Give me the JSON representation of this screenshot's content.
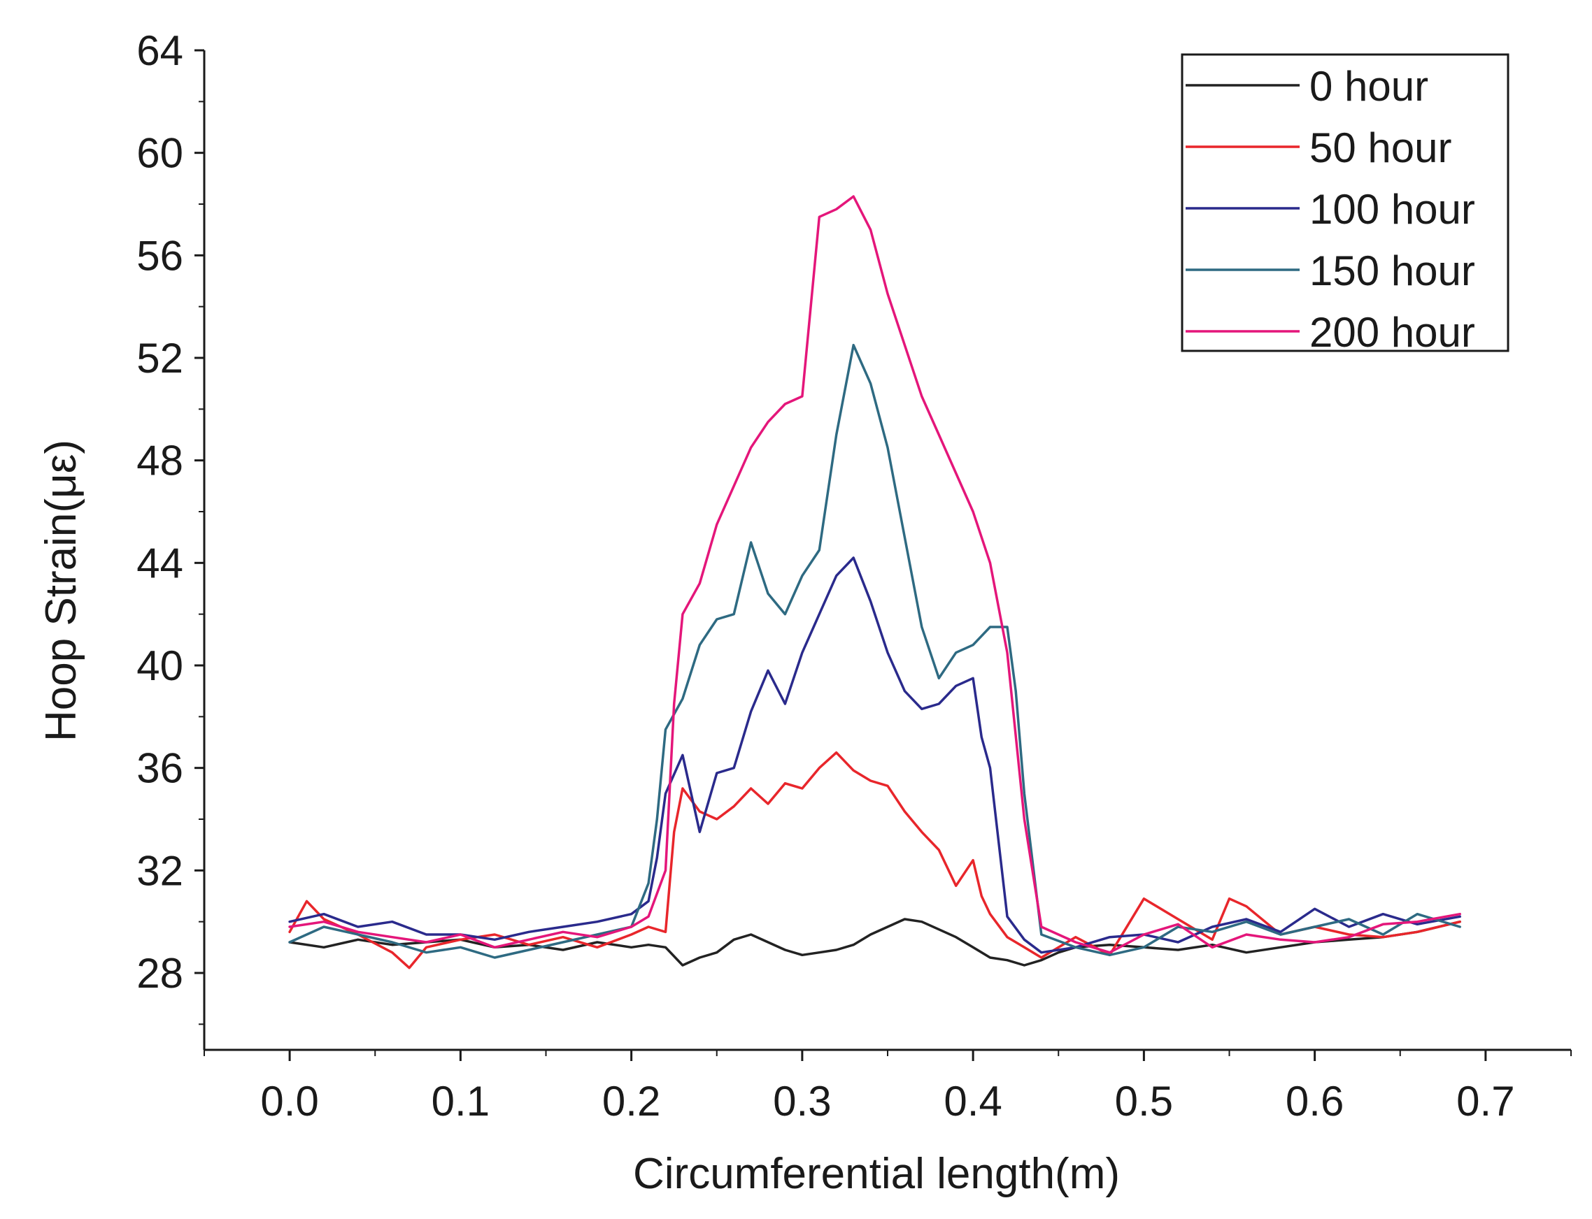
{
  "chart_data": {
    "type": "line",
    "title": "",
    "xlabel": "Circumferential length(m)",
    "ylabel": "Hoop Strain(με)",
    "xlim": [
      -0.05,
      0.75
    ],
    "ylim": [
      25,
      64
    ],
    "xticks": [
      "0.0",
      "0.1",
      "0.2",
      "0.3",
      "0.4",
      "0.5",
      "0.6",
      "0.7"
    ],
    "yticks": [
      "28",
      "32",
      "36",
      "40",
      "44",
      "48",
      "52",
      "56",
      "60",
      "64"
    ],
    "legend_position": "top-right",
    "series": [
      {
        "name": "0 hour",
        "color": "#222222",
        "x": [
          0,
          0.02,
          0.04,
          0.06,
          0.08,
          0.1,
          0.12,
          0.14,
          0.16,
          0.18,
          0.2,
          0.21,
          0.22,
          0.23,
          0.24,
          0.25,
          0.26,
          0.27,
          0.28,
          0.29,
          0.3,
          0.31,
          0.32,
          0.33,
          0.34,
          0.35,
          0.36,
          0.37,
          0.38,
          0.39,
          0.4,
          0.41,
          0.42,
          0.43,
          0.44,
          0.45,
          0.46,
          0.48,
          0.5,
          0.52,
          0.54,
          0.56,
          0.58,
          0.6,
          0.62,
          0.64,
          0.66,
          0.685
        ],
        "y": [
          29.2,
          29.0,
          29.3,
          29.1,
          29.2,
          29.3,
          29.0,
          29.1,
          28.9,
          29.2,
          29.0,
          29.1,
          29.0,
          28.3,
          28.6,
          28.8,
          29.3,
          29.5,
          29.2,
          28.9,
          28.7,
          28.8,
          28.9,
          29.1,
          29.5,
          29.8,
          30.1,
          30.0,
          29.7,
          29.4,
          29.0,
          28.6,
          28.5,
          28.3,
          28.5,
          28.8,
          29.0,
          29.1,
          29.0,
          28.9,
          29.1,
          28.8,
          29.0,
          29.2,
          29.3,
          29.4,
          29.6,
          30.0
        ]
      },
      {
        "name": "50 hour",
        "color": "#e8262b",
        "x": [
          0,
          0.01,
          0.02,
          0.04,
          0.06,
          0.07,
          0.08,
          0.1,
          0.12,
          0.14,
          0.16,
          0.18,
          0.2,
          0.21,
          0.22,
          0.225,
          0.23,
          0.24,
          0.25,
          0.26,
          0.27,
          0.28,
          0.29,
          0.3,
          0.31,
          0.32,
          0.33,
          0.34,
          0.35,
          0.36,
          0.37,
          0.38,
          0.39,
          0.4,
          0.405,
          0.41,
          0.42,
          0.43,
          0.44,
          0.46,
          0.48,
          0.5,
          0.52,
          0.54,
          0.55,
          0.56,
          0.58,
          0.6,
          0.62,
          0.64,
          0.66,
          0.685
        ],
        "y": [
          29.6,
          30.8,
          30.1,
          29.5,
          28.8,
          28.2,
          29.0,
          29.3,
          29.5,
          29.1,
          29.4,
          29.0,
          29.5,
          29.8,
          29.6,
          33.5,
          35.2,
          34.3,
          34.0,
          34.5,
          35.2,
          34.6,
          35.4,
          35.2,
          36.0,
          36.6,
          35.9,
          35.5,
          35.3,
          34.3,
          33.5,
          32.8,
          31.4,
          32.4,
          31.0,
          30.3,
          29.4,
          29.0,
          28.6,
          29.4,
          28.7,
          30.9,
          30.1,
          29.3,
          30.9,
          30.6,
          29.5,
          29.8,
          29.5,
          29.4,
          29.6,
          30.0
        ]
      },
      {
        "name": "100 hour",
        "color": "#2a2a8c",
        "x": [
          0,
          0.02,
          0.04,
          0.06,
          0.08,
          0.1,
          0.12,
          0.14,
          0.16,
          0.18,
          0.2,
          0.21,
          0.215,
          0.22,
          0.23,
          0.24,
          0.25,
          0.26,
          0.27,
          0.28,
          0.29,
          0.3,
          0.31,
          0.32,
          0.33,
          0.34,
          0.35,
          0.36,
          0.37,
          0.38,
          0.39,
          0.4,
          0.405,
          0.41,
          0.42,
          0.43,
          0.44,
          0.46,
          0.48,
          0.5,
          0.52,
          0.54,
          0.56,
          0.58,
          0.6,
          0.62,
          0.64,
          0.66,
          0.685
        ],
        "y": [
          30.0,
          30.3,
          29.8,
          30.0,
          29.5,
          29.5,
          29.3,
          29.6,
          29.8,
          30.0,
          30.3,
          30.8,
          32.5,
          35.0,
          36.5,
          33.5,
          35.8,
          36.0,
          38.2,
          39.8,
          38.5,
          40.5,
          42.0,
          43.5,
          44.2,
          42.5,
          40.5,
          39.0,
          38.3,
          38.5,
          39.2,
          39.5,
          37.2,
          36.0,
          30.2,
          29.3,
          28.8,
          29.0,
          29.4,
          29.5,
          29.2,
          29.8,
          30.1,
          29.6,
          30.5,
          29.8,
          30.3,
          29.9,
          30.2
        ]
      },
      {
        "name": "150 hour",
        "color": "#2e6a82",
        "x": [
          0,
          0.02,
          0.04,
          0.06,
          0.08,
          0.1,
          0.12,
          0.14,
          0.16,
          0.18,
          0.2,
          0.21,
          0.215,
          0.22,
          0.23,
          0.24,
          0.25,
          0.26,
          0.27,
          0.28,
          0.29,
          0.3,
          0.31,
          0.32,
          0.33,
          0.34,
          0.35,
          0.36,
          0.37,
          0.38,
          0.39,
          0.4,
          0.41,
          0.42,
          0.425,
          0.43,
          0.44,
          0.46,
          0.48,
          0.5,
          0.52,
          0.54,
          0.56,
          0.58,
          0.6,
          0.62,
          0.64,
          0.66,
          0.685
        ],
        "y": [
          29.2,
          29.8,
          29.5,
          29.2,
          28.8,
          29.0,
          28.6,
          28.9,
          29.2,
          29.5,
          29.8,
          31.5,
          34.0,
          37.5,
          38.7,
          40.8,
          41.8,
          42.0,
          44.8,
          42.8,
          42.0,
          43.5,
          44.5,
          49.0,
          52.5,
          51.0,
          48.5,
          45.0,
          41.5,
          39.5,
          40.5,
          40.8,
          41.5,
          41.5,
          39.0,
          35.0,
          29.5,
          29.0,
          28.7,
          29.0,
          29.8,
          29.6,
          30.0,
          29.5,
          29.8,
          30.1,
          29.5,
          30.3,
          29.8
        ]
      },
      {
        "name": "200 hour",
        "color": "#e4167a",
        "x": [
          0,
          0.02,
          0.04,
          0.06,
          0.08,
          0.1,
          0.12,
          0.14,
          0.16,
          0.18,
          0.2,
          0.21,
          0.22,
          0.225,
          0.23,
          0.24,
          0.25,
          0.26,
          0.27,
          0.28,
          0.29,
          0.3,
          0.31,
          0.32,
          0.33,
          0.34,
          0.35,
          0.36,
          0.37,
          0.38,
          0.39,
          0.4,
          0.41,
          0.42,
          0.43,
          0.44,
          0.46,
          0.48,
          0.5,
          0.52,
          0.54,
          0.56,
          0.58,
          0.6,
          0.62,
          0.64,
          0.66,
          0.685
        ],
        "y": [
          29.8,
          30.0,
          29.6,
          29.4,
          29.2,
          29.5,
          29.0,
          29.3,
          29.6,
          29.4,
          29.8,
          30.2,
          32.0,
          38.5,
          42.0,
          43.2,
          45.5,
          47.0,
          48.5,
          49.5,
          50.2,
          50.5,
          57.5,
          57.8,
          58.3,
          57.0,
          54.5,
          52.5,
          50.5,
          49.0,
          47.5,
          46.0,
          44.0,
          40.5,
          34.0,
          29.8,
          29.2,
          28.8,
          29.5,
          29.9,
          29.0,
          29.5,
          29.3,
          29.2,
          29.4,
          29.9,
          30.0,
          30.3
        ]
      }
    ]
  }
}
